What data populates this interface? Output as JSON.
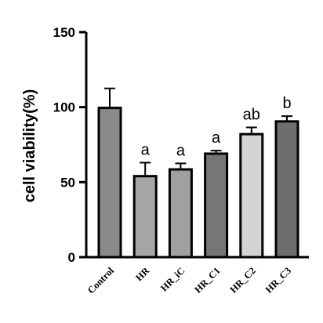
{
  "chart_data": {
    "type": "bar",
    "title": "",
    "xlabel": "",
    "ylabel": "cell viability(%)",
    "ylim": [
      0,
      150
    ],
    "yticks": [
      0,
      50,
      100,
      150
    ],
    "categories": [
      "Control",
      "HR",
      "HR_iC",
      "HR_C1",
      "HR_C2",
      "HR_C3"
    ],
    "values": [
      99.5,
      54,
      58.5,
      69,
      82,
      90.5
    ],
    "errors": [
      13,
      9,
      4,
      2,
      4.5,
      3.5
    ],
    "significance": [
      "",
      "a",
      "a",
      "a",
      "ab",
      "b"
    ],
    "colors": [
      "#8a8a8a",
      "#a6a6a6",
      "#a0a0a0",
      "#767676",
      "#d4d4d4",
      "#6e6e6e"
    ],
    "grid": false
  }
}
